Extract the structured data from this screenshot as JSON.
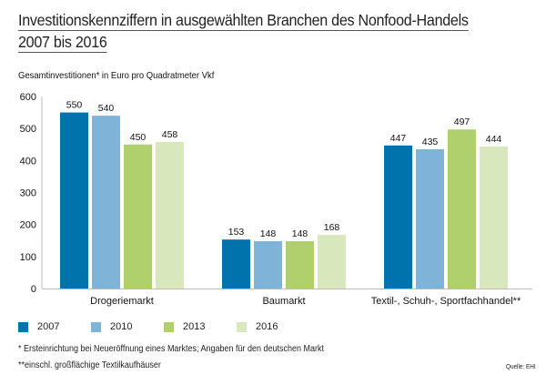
{
  "header": {
    "title_line1": "Investitionskennziffern in ausgewählten Branchen des Nonfood-Handels",
    "title_line2": "2007 bis 2016",
    "subtitle": "Gesamtinvestitionen* in Euro pro Quadratmeter Vkf"
  },
  "chart_data": {
    "type": "bar",
    "title": "Investitionskennziffern in ausgewählten Branchen des Nonfood-Handels 2007 bis 2016",
    "ylabel": "Gesamtinvestitionen* in Euro pro Quadratmeter Vkf",
    "xlabel": "",
    "categories": [
      "Drogeriemarkt",
      "Baumarkt",
      "Textil-, Schuh-, Sportfachhandel**"
    ],
    "series": [
      {
        "name": "2007",
        "color": "#0072ac",
        "values": [
          550,
          153,
          447
        ]
      },
      {
        "name": "2010",
        "color": "#7fb3d8",
        "values": [
          540,
          148,
          435
        ]
      },
      {
        "name": "2013",
        "color": "#b0d06e",
        "values": [
          450,
          148,
          497
        ]
      },
      {
        "name": "2016",
        "color": "#d8e8bc",
        "values": [
          458,
          168,
          444
        ]
      }
    ],
    "ylim": [
      0,
      600
    ],
    "yticks": [
      0,
      100,
      200,
      300,
      400,
      500,
      600
    ],
    "grid": false,
    "legend": "bottom-left",
    "data_labels": true
  },
  "footnotes": {
    "note1": "*  Ersteinrichtung bei Neueröffnung eines Marktes; Angaben für den deutschen Markt",
    "note2": "**einschl. großflächige Textilkaufhäuser",
    "source": "Quelle: EHI"
  }
}
